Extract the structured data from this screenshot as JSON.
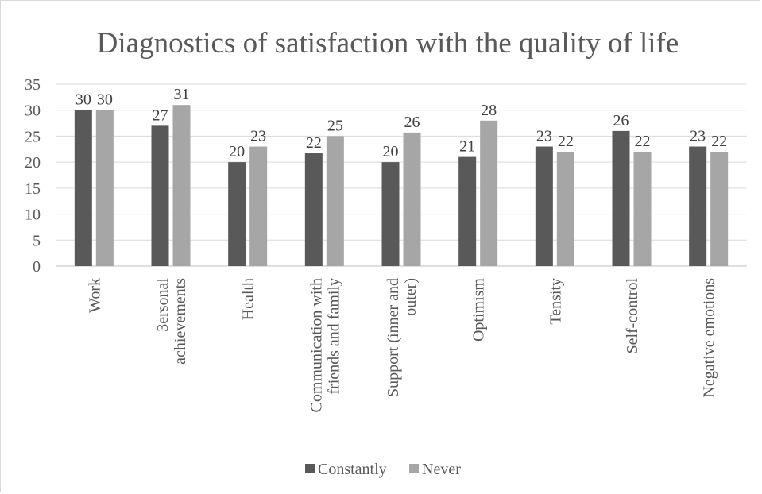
{
  "chart_data": {
    "type": "bar",
    "title": "Diagnostics of satisfaction with the quality of life",
    "xlabel": "",
    "ylabel": "",
    "ylim": [
      0,
      35
    ],
    "yticks": [
      "0",
      "5",
      "10",
      "15",
      "20",
      "25",
      "30",
      "35"
    ],
    "grid": true,
    "legend_position": "bottom",
    "categories": [
      [
        "Work"
      ],
      [
        "3ersonal",
        "achievements"
      ],
      [
        "Health"
      ],
      [
        "Communication with",
        "friends and family"
      ],
      [
        "Support (inner and",
        "outer)"
      ],
      [
        "Optimism"
      ],
      [
        "Tensity"
      ],
      [
        "Self-control"
      ],
      [
        "Negative emotions"
      ]
    ],
    "series": [
      {
        "name": "Constantly",
        "color": "#595959",
        "values": [
          30,
          27,
          20,
          21.7,
          20,
          21,
          23,
          26,
          23
        ],
        "labels": [
          "30",
          "27",
          "20",
          "22",
          "20",
          "21",
          "23",
          "26",
          "23"
        ]
      },
      {
        "name": "Never",
        "color": "#a6a6a6",
        "values": [
          30,
          31,
          23,
          25,
          25.7,
          28,
          22,
          22,
          22
        ],
        "labels": [
          "30",
          "31",
          "23",
          "25",
          "26",
          "28",
          "22",
          "22",
          "22"
        ]
      }
    ]
  }
}
